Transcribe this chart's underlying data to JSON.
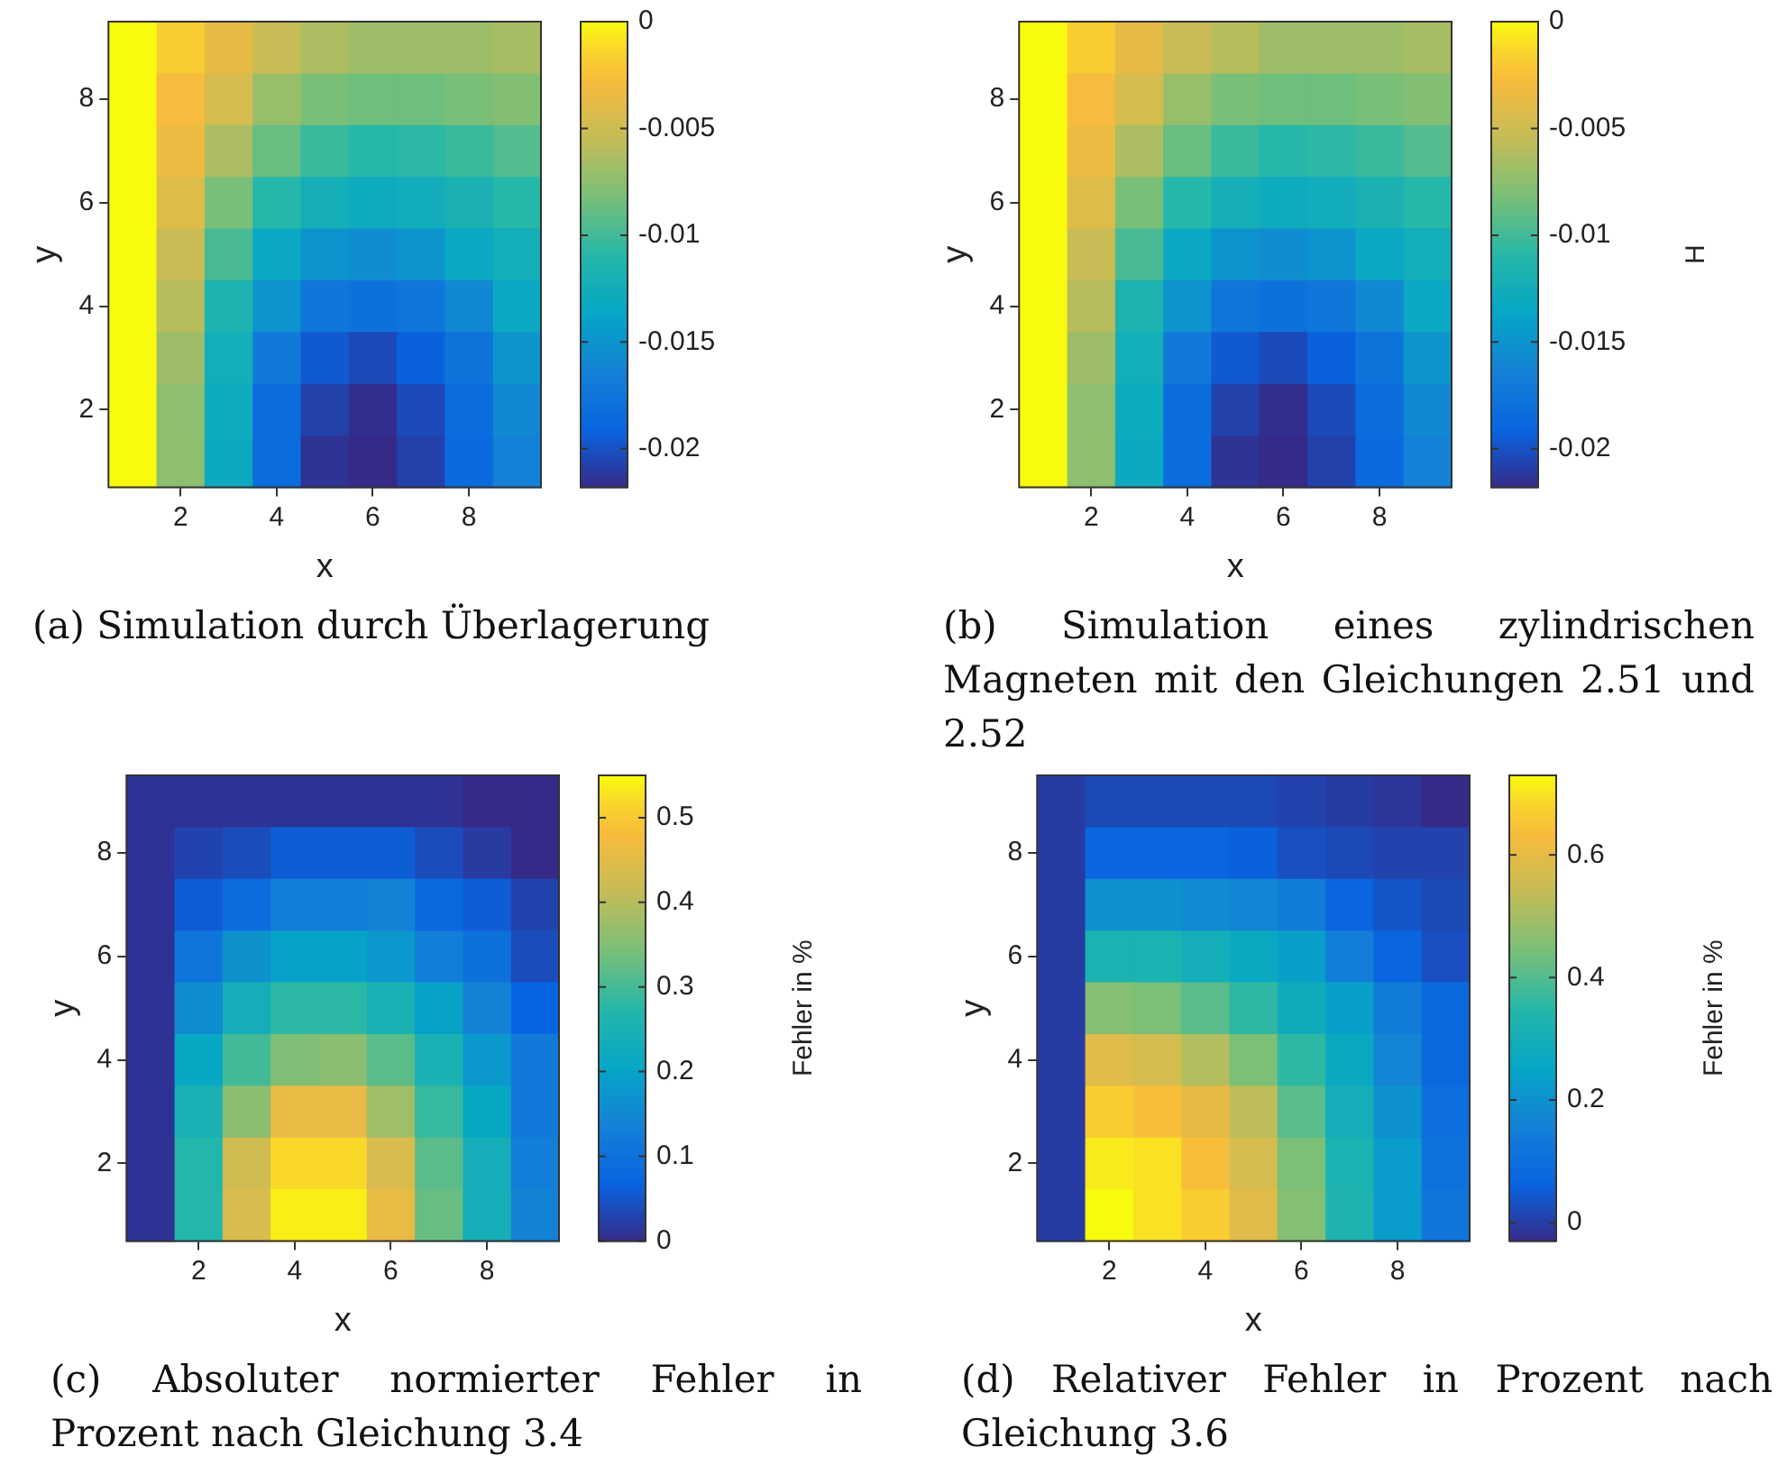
{
  "chart_data": [
    {
      "type": "heatmap",
      "title": "(a) Simulation durch Überlagerung",
      "xlabel": "x",
      "ylabel": "y",
      "categories": [
        null,
        "2",
        null,
        "4",
        null,
        "6",
        null,
        "8",
        null
      ],
      "y_categories": [
        null,
        "8",
        null,
        "6",
        null,
        "4",
        null,
        "2",
        null
      ],
      "cells": [
        [
          0,
          -0.0017,
          -0.0037,
          -0.0052,
          -0.0063,
          -0.0068,
          -0.0068,
          -0.0068,
          -0.0065
        ],
        [
          0,
          -0.0028,
          -0.0046,
          -0.007,
          -0.0081,
          -0.0085,
          -0.0085,
          -0.0081,
          -0.0078
        ],
        [
          0,
          -0.0033,
          -0.0063,
          -0.0087,
          -0.0102,
          -0.0109,
          -0.0107,
          -0.0102,
          -0.0094
        ],
        [
          0,
          -0.0041,
          -0.0081,
          -0.0109,
          -0.0122,
          -0.0129,
          -0.0126,
          -0.0118,
          -0.0109
        ],
        [
          0,
          -0.0052,
          -0.0098,
          -0.0133,
          -0.015,
          -0.0155,
          -0.015,
          -0.0133,
          -0.0124
        ],
        [
          0,
          -0.0059,
          -0.0116,
          -0.015,
          -0.0174,
          -0.0179,
          -0.0174,
          -0.0159,
          -0.0133
        ],
        [
          0,
          -0.0068,
          -0.0124,
          -0.017,
          -0.0196,
          -0.0203,
          -0.0192,
          -0.0177,
          -0.0148
        ],
        [
          0,
          -0.0074,
          -0.0129,
          -0.0183,
          -0.0207,
          -0.0216,
          -0.0203,
          -0.0183,
          -0.0159
        ],
        [
          0,
          -0.0074,
          -0.0131,
          -0.0183,
          -0.0214,
          -0.0218,
          -0.0207,
          -0.0185,
          -0.0164
        ]
      ],
      "clim": [
        -0.0218,
        0
      ],
      "cticks": [
        -0.02,
        -0.015,
        -0.01,
        -0.005,
        0
      ]
    },
    {
      "type": "heatmap",
      "title": "(b) Simulation eines zylindrischen Magneten mit den Gleichungen 2.51 und 2.52",
      "xlabel": "x",
      "ylabel": "y",
      "clabel": "H",
      "categories": [
        null,
        "2",
        null,
        "4",
        null,
        "6",
        null,
        "8",
        null
      ],
      "y_categories": [
        null,
        "8",
        null,
        "6",
        null,
        "4",
        null,
        "2",
        null
      ],
      "cells": [
        [
          0,
          -0.0017,
          -0.0037,
          -0.0052,
          -0.0059,
          -0.0068,
          -0.0068,
          -0.0068,
          -0.0065
        ],
        [
          0,
          -0.0028,
          -0.0046,
          -0.007,
          -0.0081,
          -0.0085,
          -0.0085,
          -0.0081,
          -0.0078
        ],
        [
          0,
          -0.0033,
          -0.0063,
          -0.0087,
          -0.0102,
          -0.0109,
          -0.0107,
          -0.0102,
          -0.0094
        ],
        [
          0,
          -0.0041,
          -0.0081,
          -0.0109,
          -0.0122,
          -0.0129,
          -0.0126,
          -0.0118,
          -0.0109
        ],
        [
          0,
          -0.0052,
          -0.0098,
          -0.0133,
          -0.015,
          -0.0155,
          -0.015,
          -0.0133,
          -0.0124
        ],
        [
          0,
          -0.0059,
          -0.0116,
          -0.015,
          -0.0174,
          -0.0179,
          -0.0174,
          -0.0159,
          -0.0133
        ],
        [
          0,
          -0.0068,
          -0.0124,
          -0.017,
          -0.0196,
          -0.0203,
          -0.0192,
          -0.0177,
          -0.0148
        ],
        [
          0,
          -0.0074,
          -0.0129,
          -0.0183,
          -0.0207,
          -0.0216,
          -0.0203,
          -0.0183,
          -0.0159
        ],
        [
          0,
          -0.0074,
          -0.0131,
          -0.0183,
          -0.0214,
          -0.0218,
          -0.0207,
          -0.0185,
          -0.0164
        ]
      ],
      "clim": [
        -0.0218,
        0
      ],
      "cticks": [
        -0.02,
        -0.015,
        -0.01,
        -0.005,
        0
      ]
    },
    {
      "type": "heatmap",
      "title": "(c) Absoluter normierter Fehler in Prozent nach Gleichung 3.4",
      "xlabel": "x",
      "ylabel": "y",
      "clabel": "Fehler in %",
      "categories": [
        null,
        "2",
        null,
        "4",
        null,
        "6",
        null,
        "8",
        null
      ],
      "y_categories": [
        null,
        "8",
        null,
        "6",
        null,
        "4",
        null,
        "2",
        null
      ],
      "cells": [
        [
          0.01,
          0.01,
          0.01,
          0.01,
          0.01,
          0.01,
          0.01,
          0,
          0
        ],
        [
          0.01,
          0.03,
          0.04,
          0.06,
          0.06,
          0.06,
          0.04,
          0.02,
          0
        ],
        [
          0.01,
          0.06,
          0.09,
          0.13,
          0.13,
          0.14,
          0.08,
          0.06,
          0.03
        ],
        [
          0.01,
          0.11,
          0.17,
          0.2,
          0.2,
          0.18,
          0.13,
          0.1,
          0.04
        ],
        [
          0.01,
          0.16,
          0.24,
          0.28,
          0.28,
          0.25,
          0.2,
          0.14,
          0.07
        ],
        [
          0.01,
          0.21,
          0.3,
          0.35,
          0.36,
          0.32,
          0.25,
          0.18,
          0.12
        ],
        [
          0.01,
          0.25,
          0.36,
          0.46,
          0.46,
          0.38,
          0.29,
          0.21,
          0.12
        ],
        [
          0.01,
          0.27,
          0.43,
          0.52,
          0.52,
          0.44,
          0.32,
          0.24,
          0.13
        ],
        [
          0.01,
          0.27,
          0.44,
          0.54,
          0.54,
          0.46,
          0.33,
          0.24,
          0.14
        ]
      ],
      "clim": [
        0,
        0.55
      ],
      "cticks": [
        0,
        0.1,
        0.2,
        0.3,
        0.4,
        0.5
      ]
    },
    {
      "type": "heatmap",
      "title": "(d) Relativer Fehler in Prozent nach Gleichung 3.6",
      "xlabel": "x",
      "ylabel": "y",
      "clabel": "Fehler in %",
      "categories": [
        null,
        "2",
        null,
        "4",
        null,
        "6",
        null,
        "8",
        null
      ],
      "y_categories": [
        null,
        "8",
        null,
        "6",
        null,
        "4",
        null,
        "2",
        null
      ],
      "cells": [
        [
          0,
          0.02,
          0.02,
          0.02,
          0.02,
          0.01,
          0,
          -0.01,
          -0.03
        ],
        [
          0,
          0.07,
          0.07,
          0.07,
          0.06,
          0.03,
          0.02,
          0.01,
          0.01
        ],
        [
          0,
          0.2,
          0.2,
          0.18,
          0.17,
          0.14,
          0.07,
          0.04,
          0.02
        ],
        [
          0,
          0.32,
          0.32,
          0.3,
          0.27,
          0.24,
          0.15,
          0.07,
          0.03
        ],
        [
          0,
          0.46,
          0.45,
          0.41,
          0.36,
          0.29,
          0.24,
          0.14,
          0.08
        ],
        [
          0,
          0.59,
          0.57,
          0.52,
          0.45,
          0.36,
          0.27,
          0.17,
          0.08
        ],
        [
          0,
          0.67,
          0.64,
          0.6,
          0.53,
          0.41,
          0.3,
          0.2,
          0.1
        ],
        [
          0,
          0.71,
          0.7,
          0.64,
          0.57,
          0.45,
          0.32,
          0.23,
          0.11
        ],
        [
          0,
          0.73,
          0.7,
          0.67,
          0.59,
          0.46,
          0.33,
          0.23,
          0.12
        ]
      ],
      "clim": [
        -0.03,
        0.73
      ],
      "cticks": [
        0,
        0.2,
        0.4,
        0.6
      ]
    }
  ]
}
